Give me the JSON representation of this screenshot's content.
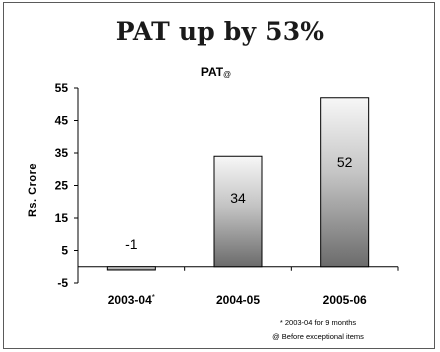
{
  "slide": {
    "title": "PAT up by 53%"
  },
  "chart_data": {
    "type": "bar",
    "title": "PAT",
    "title_suffix": "@",
    "xlabel": "",
    "ylabel": "Rs. Crore",
    "categories": [
      "2003-04",
      "2004-05",
      "2005-06"
    ],
    "category_marks": [
      "*",
      "",
      ""
    ],
    "values": [
      -1,
      34,
      52
    ],
    "data_labels": [
      "-1",
      "34",
      "52"
    ],
    "ylim": [
      -5,
      55
    ],
    "yticks": [
      -5,
      5,
      15,
      25,
      35,
      45,
      55
    ],
    "grid": false,
    "legend": "none"
  },
  "footnotes": [
    "* 2003-04 for 9 months",
    "@ Before exceptional items"
  ]
}
